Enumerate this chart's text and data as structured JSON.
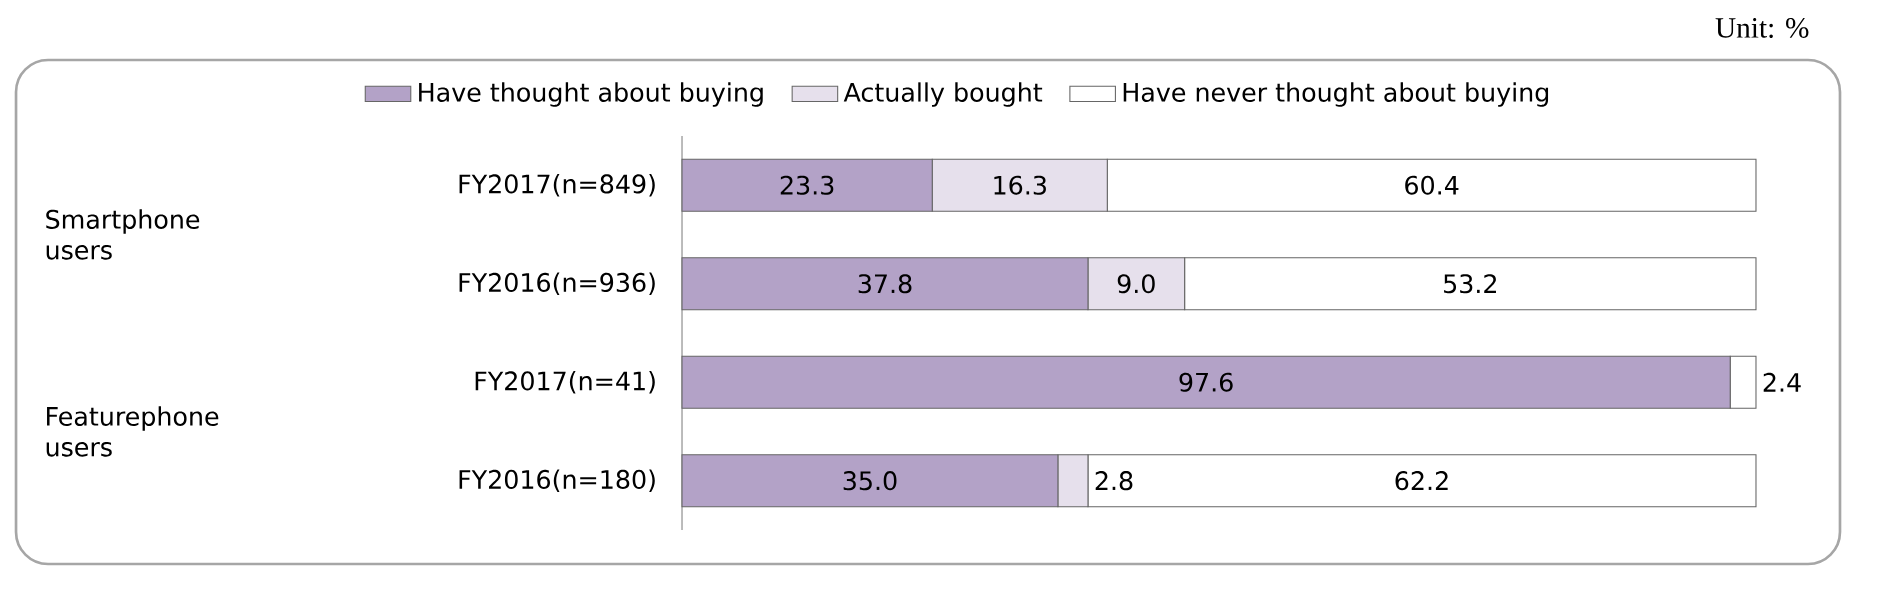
{
  "chart_data": {
    "type": "bar",
    "orientation": "horizontal",
    "stacked": true,
    "categories": [
      "FY2017(n=849)",
      "FY2016(n=936)",
      "FY2017(n=41)",
      "FY2016(n=180)"
    ],
    "series": [
      {
        "name": "Have thought about buying",
        "color": "#b3a2c7",
        "values": [
          23.3,
          37.8,
          97.6,
          35.0
        ],
        "value_labels": [
          "23.3",
          "37.8",
          "97.6",
          "35.0"
        ]
      },
      {
        "name": "Actually bought",
        "color": "#e6e0ec",
        "values": [
          16.3,
          9.0,
          0,
          2.8
        ],
        "value_labels": [
          "16.3",
          "9.0",
          null,
          "2.8"
        ]
      },
      {
        "name": "Have never thought about buying",
        "color": "#ffffff",
        "values": [
          60.4,
          53.2,
          2.4,
          62.2
        ],
        "value_labels": [
          "60.4",
          "53.2",
          "2.4",
          "62.2"
        ]
      }
    ],
    "xlim": [
      0,
      100
    ],
    "tick_labels": "y",
    "legend": "top",
    "annotations": [
      "Unit: %",
      "Smartphone users",
      "Featurephone users"
    ]
  }
}
